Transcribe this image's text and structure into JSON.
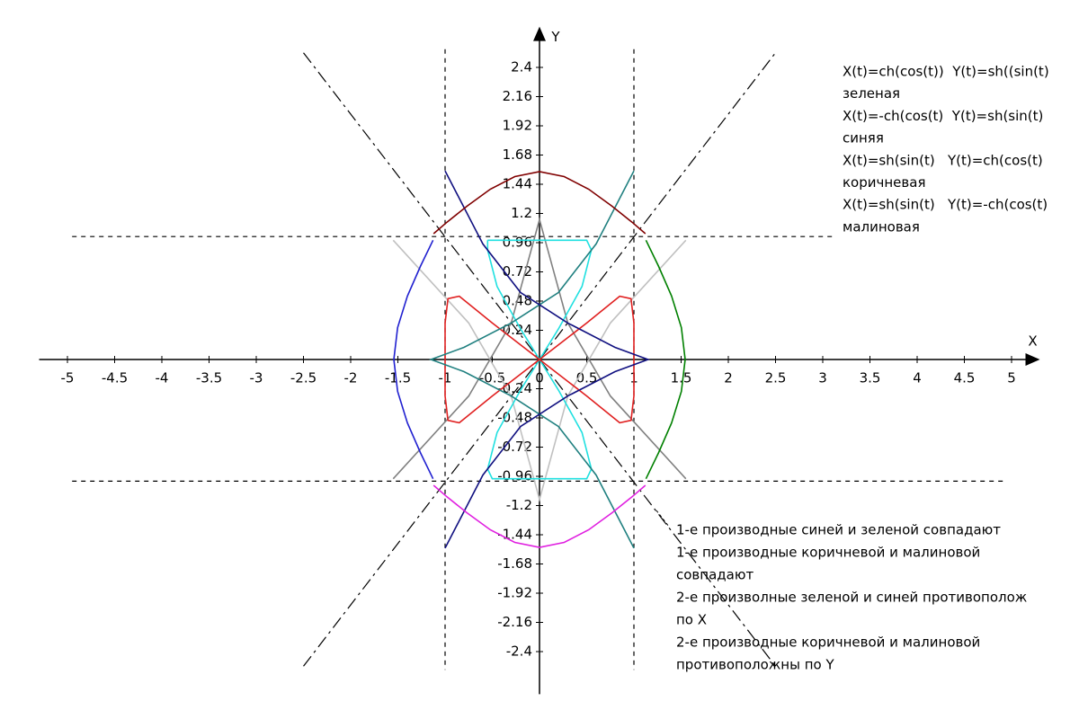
{
  "chart_data": {
    "type": "line",
    "x_label": "X",
    "y_label": "Y",
    "xlim": [
      -5.3,
      5.3
    ],
    "ylim": [
      -2.75,
      2.75
    ],
    "xticks": [
      -5,
      -4.5,
      -4,
      -3.5,
      -3,
      -2.5,
      -2,
      -1.5,
      -1,
      -0.5,
      0,
      0.5,
      1,
      1.5,
      2,
      2.5,
      3,
      3.5,
      4,
      4.5,
      5
    ],
    "yticks": [
      2.4,
      2.16,
      1.92,
      1.68,
      1.44,
      1.2,
      0.96,
      0.72,
      0.48,
      0.24,
      -0.24,
      -0.48,
      -0.72,
      -0.96,
      -1.2,
      -1.44,
      -1.68,
      -1.92,
      -2.16,
      -2.4
    ],
    "series": [
      {
        "color": "#000000",
        "dash": "dash",
        "x": [
          -1,
          -1
        ],
        "values": [
          2.55,
          -2.55
        ]
      },
      {
        "color": "#000000",
        "dash": "dash",
        "x": [
          1,
          1
        ],
        "values": [
          2.55,
          -2.55
        ]
      },
      {
        "color": "#000000",
        "dash": "dash",
        "x": [
          -4.95,
          3.1
        ],
        "values": [
          1.01,
          1.01
        ]
      },
      {
        "color": "#000000",
        "dash": "dash",
        "x": [
          -4.95,
          4.95
        ],
        "values": [
          -1.0,
          -1.0
        ]
      },
      {
        "color": "#000000",
        "dash": "dashdot",
        "x": [
          -2.5,
          2.5
        ],
        "values": [
          -2.52,
          2.52
        ]
      },
      {
        "color": "#000000",
        "dash": "dashdot",
        "x": [
          -2.5,
          2.5
        ],
        "values": [
          2.52,
          -2.52
        ]
      },
      {
        "color": "#c0c0c0",
        "dash": "solid",
        "x": [
          -1.55,
          -0.75,
          -0.3,
          0,
          0.3,
          0.75,
          1.55
        ],
        "values": [
          0.98,
          0.3,
          -0.3,
          -1.15,
          -0.3,
          0.3,
          0.98
        ]
      },
      {
        "color": "#808080",
        "dash": "solid",
        "x": [
          -1.55,
          -0.75,
          -0.3,
          0,
          0.3,
          0.75,
          1.55
        ],
        "values": [
          -0.98,
          -0.3,
          0.3,
          1.15,
          0.3,
          -0.3,
          -0.98
        ]
      },
      {
        "color": "#20e0e0",
        "dash": "solid",
        "x": [
          -0.55,
          0.5,
          0.55,
          0.45,
          0.2,
          0,
          -0.2,
          -0.45,
          -0.55,
          -0.5,
          0.5,
          0.55,
          0.45,
          0.2,
          0,
          -0.2,
          -0.45,
          -0.55,
          -0.55
        ],
        "values": [
          0.98,
          0.98,
          0.9,
          0.6,
          0.25,
          0,
          -0.25,
          -0.6,
          -0.9,
          -0.98,
          -0.98,
          -0.9,
          -0.6,
          -0.25,
          0,
          0.25,
          0.6,
          0.9,
          0.98
        ]
      },
      {
        "color": "#e02020",
        "dash": "solid",
        "x": [
          0,
          0.5,
          0.85,
          0.97,
          1.0,
          1.0,
          0.97,
          0.85,
          0.5,
          0,
          -0.5,
          -0.85,
          -0.97,
          -1,
          -1,
          -0.97,
          -0.85,
          -0.5,
          0
        ],
        "values": [
          0,
          0.3,
          0.52,
          0.5,
          0.3,
          -0.3,
          -0.5,
          -0.52,
          -0.3,
          0,
          0.3,
          0.52,
          0.5,
          0.3,
          -0.3,
          -0.5,
          -0.52,
          -0.3,
          0
        ]
      },
      {
        "color": "#208080",
        "dash": "solid",
        "x": [
          1,
          0.6,
          0.2,
          -0.3,
          -0.8,
          -1.15,
          -0.8,
          -0.3,
          0.2,
          0.6,
          1
        ],
        "values": [
          1.55,
          0.95,
          0.55,
          0.3,
          0.1,
          0,
          -0.1,
          -0.3,
          -0.55,
          -0.95,
          -1.55
        ]
      },
      {
        "color": "#101080",
        "dash": "solid",
        "x": [
          -1,
          -0.6,
          -0.2,
          0.3,
          0.8,
          1.15,
          0.8,
          0.3,
          -0.2,
          -0.6,
          -1
        ],
        "values": [
          1.55,
          0.95,
          0.55,
          0.3,
          0.1,
          0,
          -0.1,
          -0.3,
          -0.55,
          -0.95,
          -1.55
        ]
      },
      {
        "color": "#008000",
        "dash": "solid",
        "x": [
          1.128,
          1.26,
          1.399,
          1.503,
          1.543,
          1.503,
          1.399,
          1.26,
          1.128
        ],
        "values": [
          -0.98,
          -0.768,
          -0.521,
          -0.262,
          0,
          0.262,
          0.521,
          0.768,
          0.98
        ]
      },
      {
        "color": "#2020d0",
        "dash": "solid",
        "x": [
          -1.128,
          -1.26,
          -1.399,
          -1.503,
          -1.543,
          -1.503,
          -1.399,
          -1.26,
          -1.128
        ],
        "values": [
          -0.98,
          -0.768,
          -0.521,
          -0.262,
          0,
          0.262,
          0.521,
          0.768,
          0.98
        ]
      },
      {
        "color": "#800000",
        "dash": "solid",
        "x": [
          -1.122,
          -0.98,
          -0.768,
          -0.521,
          -0.262,
          0,
          0.262,
          0.521,
          0.768,
          0.98,
          1.122
        ],
        "values": [
          1.034,
          1.128,
          1.26,
          1.399,
          1.503,
          1.543,
          1.503,
          1.399,
          1.26,
          1.128,
          1.034
        ]
      },
      {
        "color": "#e020e0",
        "dash": "solid",
        "x": [
          -1.122,
          -0.98,
          -0.768,
          -0.521,
          -0.262,
          0,
          0.262,
          0.521,
          0.768,
          0.98,
          1.122
        ],
        "values": [
          -1.034,
          -1.128,
          -1.26,
          -1.399,
          -1.503,
          -1.543,
          -1.503,
          -1.399,
          -1.26,
          -1.128,
          -1.034
        ]
      }
    ],
    "annotations_top": [
      "X(t)=ch(cos(t))  Y(t)=sh((sin(t)",
      "зеленая",
      "X(t)=-ch(cos(t)  Y(t)=sh(sin(t)",
      "синяя",
      "X(t)=sh(sin(t)   Y(t)=ch(cos(t)",
      "коричневая",
      "X(t)=sh(sin(t)   Y(t)=-ch(cos(t)",
      "малиновая"
    ],
    "annotations_bottom": [
      "1-е производные синей и зеленой совпадают",
      "1-е производные коричневой и малиновой",
      "совпадают",
      "2-е произволные зеленой и синей противополож",
      "по X",
      "2-е производные коричневой и малиновой",
      "противоположны по Y"
    ]
  }
}
